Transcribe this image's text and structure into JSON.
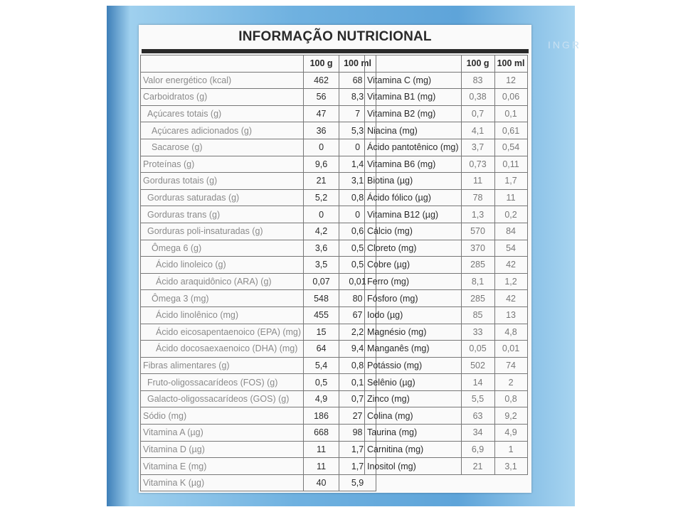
{
  "label": {
    "title": "INFORMAÇÃO NUTRICIONAL",
    "side_title": "INGR",
    "left_table": {
      "headers": [
        "100 g",
        "100 ml"
      ],
      "rows": [
        [
          "Valor energético (kcal)",
          "462",
          "68"
        ],
        [
          "Carboidratos (g)",
          "56",
          "8,3"
        ],
        [
          "Açúcares totais (g)",
          "47",
          "7"
        ],
        [
          "Açúcares adicionados (g)",
          "36",
          "5,3"
        ],
        [
          "Sacarose (g)",
          "0",
          "0"
        ],
        [
          "Proteínas (g)",
          "9,6",
          "1,4"
        ],
        [
          "Gorduras totais (g)",
          "21",
          "3,1"
        ],
        [
          "Gorduras saturadas (g)",
          "5,2",
          "0,8"
        ],
        [
          "Gorduras trans (g)",
          "0",
          "0"
        ],
        [
          "Gorduras poli-insaturadas (g)",
          "4,2",
          "0,6"
        ],
        [
          "Ômega 6 (g)",
          "3,6",
          "0,5"
        ],
        [
          "Ácido linoleico (g)",
          "3,5",
          "0,5"
        ],
        [
          "Ácido araquidônico (ARA) (g)",
          "0,07",
          "0,01"
        ],
        [
          "Ômega 3 (mg)",
          "548",
          "80"
        ],
        [
          "Ácido linolênico (mg)",
          "455",
          "67"
        ],
        [
          "Ácido eicosapentaenoico (EPA) (mg)",
          "15",
          "2,2"
        ],
        [
          "Ácido docosaexaenoico (DHA) (mg)",
          "64",
          "9,4"
        ],
        [
          "Fibras alimentares (g)",
          "5,4",
          "0,8"
        ],
        [
          "Fruto-oligossacarídeos (FOS) (g)",
          "0,5",
          "0,1"
        ],
        [
          "Galacto-oligossacarídeos (GOS) (g)",
          "4,9",
          "0,7"
        ],
        [
          "Sódio (mg)",
          "186",
          "27"
        ],
        [
          "Vitamina A (µg)",
          "668",
          "98"
        ],
        [
          "Vitamina D (µg)",
          "11",
          "1,7"
        ],
        [
          "Vitamina E (mg)",
          "11",
          "1,7"
        ],
        [
          "Vitamina K (µg)",
          "40",
          "5,9"
        ]
      ]
    },
    "right_table": {
      "headers": [
        "100 g",
        "100 ml"
      ],
      "rows": [
        [
          "Vitamina C (mg)",
          "83",
          "12"
        ],
        [
          "Vitamina B1 (mg)",
          "0,38",
          "0,06"
        ],
        [
          "Vitamina B2 (mg)",
          "0,7",
          "0,1"
        ],
        [
          "Niacina (mg)",
          "4,1",
          "0,61"
        ],
        [
          "Ácido pantotênico (mg)",
          "3,7",
          "0,54"
        ],
        [
          "Vitamina B6 (mg)",
          "0,73",
          "0,11"
        ],
        [
          "Biotina (µg)",
          "11",
          "1,7"
        ],
        [
          "Ácido fólico (µg)",
          "78",
          "11"
        ],
        [
          "Vitamina B12 (µg)",
          "1,3",
          "0,2"
        ],
        [
          "Cálcio (mg)",
          "570",
          "84"
        ],
        [
          "Cloreto (mg)",
          "370",
          "54"
        ],
        [
          "Cobre (µg)",
          "285",
          "42"
        ],
        [
          "Ferro (mg)",
          "8,1",
          "1,2"
        ],
        [
          "Fósforo (mg)",
          "285",
          "42"
        ],
        [
          "Iodo (µg)",
          "85",
          "13"
        ],
        [
          "Magnésio (mg)",
          "33",
          "4,8"
        ],
        [
          "Manganês (mg)",
          "0,05",
          "0,01"
        ],
        [
          "Potássio (mg)",
          "502",
          "74"
        ],
        [
          "Selênio (µg)",
          "14",
          "2"
        ],
        [
          "Zinco (mg)",
          "5,5",
          "0,8"
        ],
        [
          "Colina (mg)",
          "63",
          "9,2"
        ],
        [
          "Taurina (mg)",
          "34",
          "4,9"
        ],
        [
          "Carnitina (mg)",
          "6,9",
          "1"
        ],
        [
          "Inositol (mg)",
          "21",
          "3,1"
        ]
      ]
    }
  }
}
